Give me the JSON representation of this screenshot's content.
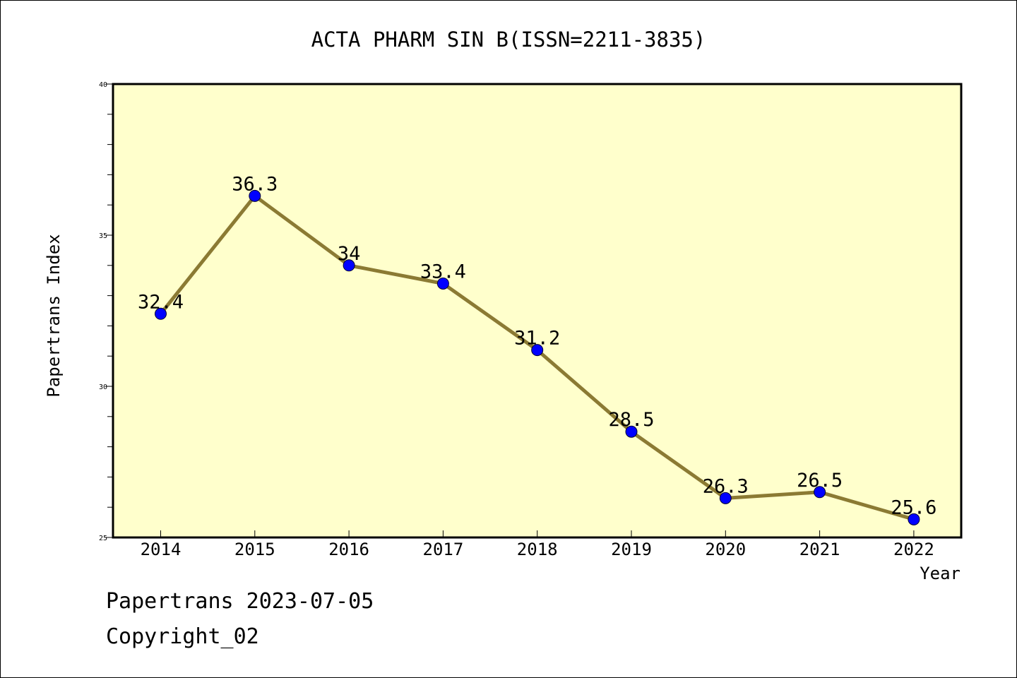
{
  "chart_data": {
    "type": "line",
    "title": "ACTA PHARM SIN B(ISSN=2211-3835)",
    "xlabel": "Year",
    "ylabel": "Papertrans Index",
    "categories": [
      "2014",
      "2015",
      "2016",
      "2017",
      "2018",
      "2019",
      "2020",
      "2021",
      "2022"
    ],
    "values": [
      32.4,
      36.3,
      34,
      33.4,
      31.2,
      28.5,
      26.3,
      26.5,
      25.6
    ],
    "data_labels": [
      "32.4",
      "36.3",
      "34",
      "33.4",
      "31.2",
      "28.5",
      "26.3",
      "26.5",
      "25.6"
    ],
    "ylim": [
      25,
      40
    ],
    "y_ticks": [
      "25",
      "30",
      "35",
      "40"
    ],
    "grid": false,
    "legend": "none",
    "colors": {
      "plot_background": "#ffffcc",
      "line": "#8b7a33",
      "marker": "#0000ff"
    }
  },
  "footer": {
    "date_line": "Papertrans 2023-07-05",
    "copyright_line": "Copyright_02"
  }
}
